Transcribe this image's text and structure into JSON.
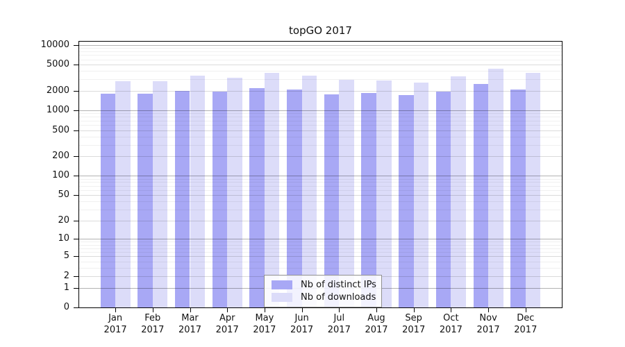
{
  "title": "topGO 2017",
  "chart_data": {
    "type": "bar",
    "title": "topGO 2017",
    "y_scale": "log1p",
    "ylim": [
      0,
      10000
    ],
    "y_ticks": [
      10000,
      5000,
      2000,
      1000,
      500,
      200,
      100,
      50,
      20,
      10,
      5,
      2,
      1,
      0
    ],
    "categories": [
      "Jan",
      "Feb",
      "Mar",
      "Apr",
      "May",
      "Jun",
      "Jul",
      "Aug",
      "Sep",
      "Oct",
      "Nov",
      "Dec"
    ],
    "x_year": "2017",
    "grid": true,
    "legend_position": "bottom-center",
    "series": [
      {
        "name": "Nb of distinct IPs",
        "color": "#a8a8f5",
        "values": [
          1800,
          1800,
          2000,
          1950,
          2200,
          2100,
          1750,
          1850,
          1700,
          1950,
          2550,
          2100
        ]
      },
      {
        "name": "Nb of downloads",
        "color": "#dcdcf9",
        "values": [
          2800,
          2800,
          3400,
          3150,
          3700,
          3400,
          2900,
          2850,
          2650,
          3300,
          4300,
          3700
        ]
      }
    ]
  }
}
